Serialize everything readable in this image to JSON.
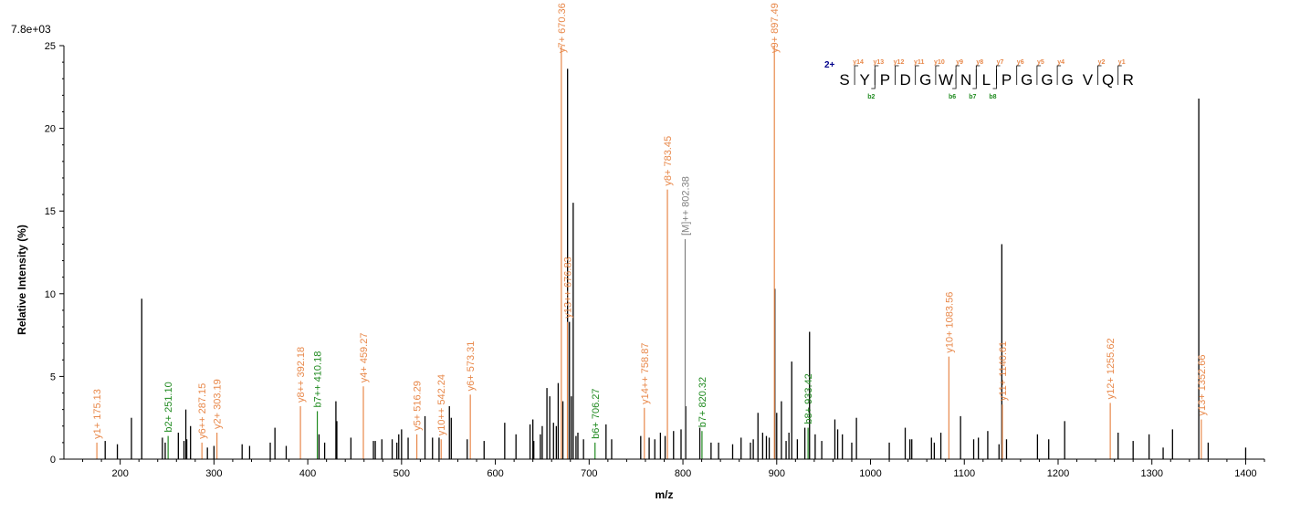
{
  "colors": {
    "unassigned": "#000000",
    "y_ion": "#e8884a",
    "b_ion": "#1f8a1f",
    "precursor": "#808080",
    "charge": "#00008b"
  },
  "chart_data": {
    "type": "bar",
    "title": "",
    "scale_label": "7.8e+03",
    "xlabel": "m/z",
    "ylabel": "Relative  Intensity (%)",
    "xlim": [
      140,
      1420
    ],
    "ylim": [
      0,
      25
    ],
    "x_ticks": [
      200,
      300,
      400,
      500,
      600,
      700,
      800,
      900,
      1000,
      1100,
      1200,
      1300,
      1400
    ],
    "y_ticks": [
      0,
      5,
      10,
      15,
      20,
      25
    ],
    "annotated_peaks": [
      {
        "mz": 175.13,
        "intensity": 1.0,
        "ion": "y",
        "label": "y1+ 175.13"
      },
      {
        "mz": 251.1,
        "intensity": 1.4,
        "ion": "b",
        "label": "b2+ 251.10"
      },
      {
        "mz": 287.15,
        "intensity": 1.0,
        "ion": "y",
        "label": "y6++ 287.15"
      },
      {
        "mz": 303.19,
        "intensity": 1.6,
        "ion": "y",
        "label": "y2+ 303.19"
      },
      {
        "mz": 392.18,
        "intensity": 3.2,
        "ion": "y",
        "label": "y8++ 392.18"
      },
      {
        "mz": 410.18,
        "intensity": 2.9,
        "ion": "b",
        "label": "b7++ 410.18"
      },
      {
        "mz": 459.27,
        "intensity": 4.4,
        "ion": "y",
        "label": "y4+ 459.27"
      },
      {
        "mz": 516.29,
        "intensity": 1.5,
        "ion": "y",
        "label": "y5+ 516.29"
      },
      {
        "mz": 542.24,
        "intensity": 1.2,
        "ion": "y",
        "label": "y10++ 542.24"
      },
      {
        "mz": 573.31,
        "intensity": 3.9,
        "ion": "y",
        "label": "y6+ 573.31"
      },
      {
        "mz": 670.36,
        "intensity": 25.0,
        "ion": "y",
        "label": "y7+ 670.36"
      },
      {
        "mz": 676.83,
        "intensity": 8.3,
        "ion": "y",
        "label": "y13++ 676.83"
      },
      {
        "mz": 706.27,
        "intensity": 1.0,
        "ion": "b",
        "label": "b6+ 706.27"
      },
      {
        "mz": 758.87,
        "intensity": 3.1,
        "ion": "y",
        "label": "y14++ 758.87"
      },
      {
        "mz": 783.45,
        "intensity": 16.3,
        "ion": "y",
        "label": "y8+ 783.45"
      },
      {
        "mz": 802.38,
        "intensity": 13.3,
        "ion": "p",
        "label": "[M]++ 802.38"
      },
      {
        "mz": 820.32,
        "intensity": 1.7,
        "ion": "b",
        "label": "b7+ 820.32"
      },
      {
        "mz": 897.49,
        "intensity": 25.0,
        "ion": "y",
        "label": "y9+ 897.49"
      },
      {
        "mz": 933.42,
        "intensity": 1.9,
        "ion": "b",
        "label": "b8+ 933.42"
      },
      {
        "mz": 1083.56,
        "intensity": 6.2,
        "ion": "y",
        "label": "y10+ 1083.56"
      },
      {
        "mz": 1140.61,
        "intensity": 3.3,
        "ion": "y",
        "label": "y11+ 1140.61"
      },
      {
        "mz": 1255.62,
        "intensity": 3.4,
        "ion": "y",
        "label": "y12+ 1255.62"
      },
      {
        "mz": 1352.66,
        "intensity": 2.4,
        "ion": "y",
        "label": "y13+ 1352.66"
      }
    ],
    "unassigned_peaks": [
      [
        184,
        1.1
      ],
      [
        197,
        0.9
      ],
      [
        212,
        2.5
      ],
      [
        223,
        9.7
      ],
      [
        245,
        1.3
      ],
      [
        248,
        1.0
      ],
      [
        262,
        1.6
      ],
      [
        268,
        1.1
      ],
      [
        270,
        3.0
      ],
      [
        271,
        1.2
      ],
      [
        275,
        2.0
      ],
      [
        293,
        0.7
      ],
      [
        300,
        0.8
      ],
      [
        330,
        0.9
      ],
      [
        338,
        0.8
      ],
      [
        360,
        1.0
      ],
      [
        365,
        1.9
      ],
      [
        377,
        0.8
      ],
      [
        412,
        1.5
      ],
      [
        418,
        1.0
      ],
      [
        430,
        3.5
      ],
      [
        431,
        2.3
      ],
      [
        446,
        1.3
      ],
      [
        470,
        1.1
      ],
      [
        472,
        1.1
      ],
      [
        479,
        1.2
      ],
      [
        490,
        1.2
      ],
      [
        495,
        1.0
      ],
      [
        497,
        1.5
      ],
      [
        500,
        1.8
      ],
      [
        507,
        1.3
      ],
      [
        525,
        2.6
      ],
      [
        533,
        1.3
      ],
      [
        540,
        1.3
      ],
      [
        551,
        3.2
      ],
      [
        553,
        2.5
      ],
      [
        570,
        1.2
      ],
      [
        588,
        1.1
      ],
      [
        610,
        2.2
      ],
      [
        622,
        1.5
      ],
      [
        637,
        2.1
      ],
      [
        640,
        2.4
      ],
      [
        641,
        1.1
      ],
      [
        648,
        1.5
      ],
      [
        650,
        2.0
      ],
      [
        655,
        4.3
      ],
      [
        658,
        3.8
      ],
      [
        662,
        2.2
      ],
      [
        665,
        2.0
      ],
      [
        667,
        4.6
      ],
      [
        672,
        3.5
      ],
      [
        677,
        23.6
      ],
      [
        679,
        8.3
      ],
      [
        681,
        3.8
      ],
      [
        683,
        15.5
      ],
      [
        686,
        1.4
      ],
      [
        688,
        1.6
      ],
      [
        694,
        1.2
      ],
      [
        718,
        2.1
      ],
      [
        724,
        1.2
      ],
      [
        755,
        1.4
      ],
      [
        764,
        1.3
      ],
      [
        770,
        1.2
      ],
      [
        776,
        1.6
      ],
      [
        781,
        1.4
      ],
      [
        790,
        1.7
      ],
      [
        798,
        1.8
      ],
      [
        803,
        3.2
      ],
      [
        818,
        1.9
      ],
      [
        830,
        1.0
      ],
      [
        838,
        1.0
      ],
      [
        853,
        0.9
      ],
      [
        862,
        1.3
      ],
      [
        872,
        1.0
      ],
      [
        875,
        1.2
      ],
      [
        880,
        2.8
      ],
      [
        885,
        1.6
      ],
      [
        889,
        1.4
      ],
      [
        892,
        1.3
      ],
      [
        898,
        10.3
      ],
      [
        900,
        2.8
      ],
      [
        905,
        3.5
      ],
      [
        910,
        1.1
      ],
      [
        913,
        1.6
      ],
      [
        916,
        5.9
      ],
      [
        922,
        1.2
      ],
      [
        930,
        1.9
      ],
      [
        935,
        7.7
      ],
      [
        941,
        1.5
      ],
      [
        948,
        1.1
      ],
      [
        962,
        2.4
      ],
      [
        965,
        1.8
      ],
      [
        970,
        1.5
      ],
      [
        980,
        1.0
      ],
      [
        985,
        2.5
      ],
      [
        1020,
        1.0
      ],
      [
        1037,
        1.9
      ],
      [
        1042,
        1.2
      ],
      [
        1044,
        1.2
      ],
      [
        1065,
        1.3
      ],
      [
        1068,
        1.0
      ],
      [
        1075,
        1.6
      ],
      [
        1096,
        2.6
      ],
      [
        1110,
        1.2
      ],
      [
        1115,
        1.3
      ],
      [
        1125,
        1.7
      ],
      [
        1137,
        0.9
      ],
      [
        1140,
        13.0
      ],
      [
        1145,
        1.2
      ],
      [
        1178,
        1.5
      ],
      [
        1190,
        1.2
      ],
      [
        1207,
        2.3
      ],
      [
        1264,
        1.6
      ],
      [
        1280,
        1.1
      ],
      [
        1297,
        1.5
      ],
      [
        1312,
        0.7
      ],
      [
        1322,
        1.8
      ],
      [
        1350,
        21.8
      ],
      [
        1360,
        1.0
      ],
      [
        1400,
        0.7
      ]
    ],
    "peptide": {
      "charge": "2+",
      "sequence": [
        "S",
        "Y",
        "P",
        "D",
        "G",
        "W",
        "N",
        "L",
        "P",
        "G",
        "G",
        "G",
        "V",
        "Q",
        "R"
      ],
      "y_ions": [
        {
          "after": 1,
          "label": "y14"
        },
        {
          "after": 2,
          "label": "y13"
        },
        {
          "after": 3,
          "label": "y12"
        },
        {
          "after": 4,
          "label": "y11"
        },
        {
          "after": 5,
          "label": "y10"
        },
        {
          "after": 6,
          "label": "y9"
        },
        {
          "after": 7,
          "label": "y8"
        },
        {
          "after": 8,
          "label": "y7"
        },
        {
          "after": 9,
          "label": "y6"
        },
        {
          "after": 10,
          "label": "y5"
        },
        {
          "after": 11,
          "label": "y4"
        },
        {
          "after": 13,
          "label": "y2"
        },
        {
          "after": 14,
          "label": "y1"
        }
      ],
      "b_ions": [
        {
          "after": 2,
          "label": "b2"
        },
        {
          "after": 6,
          "label": "b6"
        },
        {
          "after": 7,
          "label": "b7"
        },
        {
          "after": 8,
          "label": "b8"
        }
      ]
    }
  }
}
